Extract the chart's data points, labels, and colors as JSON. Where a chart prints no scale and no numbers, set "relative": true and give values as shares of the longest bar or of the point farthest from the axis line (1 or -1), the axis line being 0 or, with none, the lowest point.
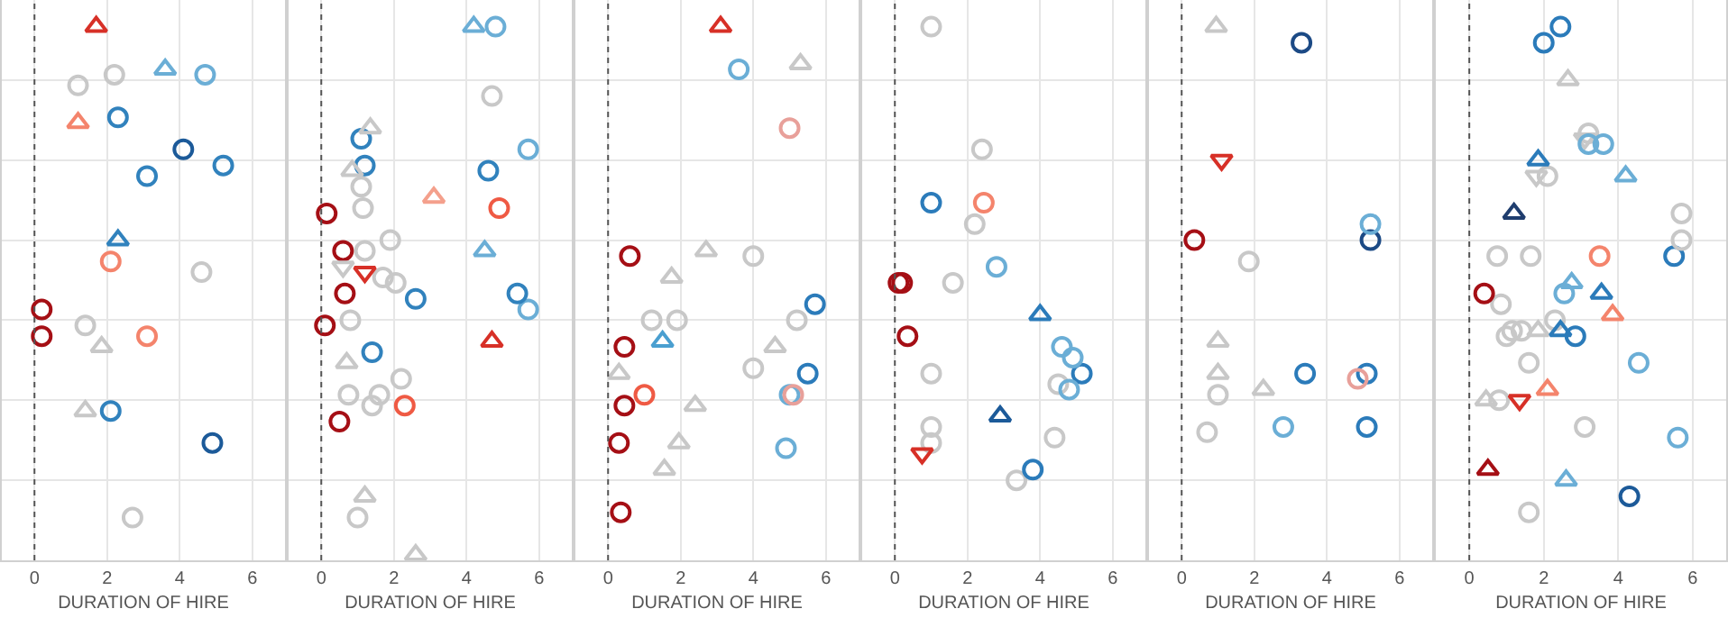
{
  "chart_data": [
    {
      "type": "scatter",
      "relative": true,
      "xlabel": "DURATION OF HIRE",
      "xlim": [
        -0.9,
        6.9
      ],
      "xticks": [
        0,
        2,
        4,
        6
      ],
      "grid": true,
      "ref_lines": [
        {
          "axis": "x",
          "value": 0,
          "line_style": "dotted",
          "color": "#555555"
        }
      ],
      "series": [
        {
          "color": "#d73027",
          "marker": "triangle",
          "x": [
            1.7
          ],
          "values": [
            1.0
          ]
        },
        {
          "color": "#c8c8c8",
          "marker": "circle",
          "x": [
            1.2,
            2.2,
            4.6,
            1.4,
            2.7
          ],
          "values": [
            0.89,
            0.91,
            0.54,
            0.44,
            0.08
          ]
        },
        {
          "color": "#6baed6",
          "marker": "triangle",
          "x": [
            3.6
          ],
          "values": [
            0.92
          ]
        },
        {
          "color": "#6baed6",
          "marker": "circle",
          "x": [
            4.7
          ],
          "values": [
            0.91
          ]
        },
        {
          "color": "#f4846c",
          "marker": "triangle",
          "x": [
            1.2
          ],
          "values": [
            0.82
          ]
        },
        {
          "color": "#3182bd",
          "marker": "circle",
          "x": [
            2.3,
            5.2,
            3.1,
            2.1
          ],
          "values": [
            0.83,
            0.74,
            0.72,
            0.28
          ]
        },
        {
          "color": "#1c5a99",
          "marker": "circle",
          "x": [
            4.1,
            4.9
          ],
          "values": [
            0.77,
            0.22
          ]
        },
        {
          "color": "#3182bd",
          "marker": "triangle",
          "x": [
            2.3
          ],
          "values": [
            0.6
          ]
        },
        {
          "color": "#f4846c",
          "marker": "circle",
          "x": [
            2.1,
            3.1
          ],
          "values": [
            0.56,
            0.42
          ]
        },
        {
          "color": "#a50f15",
          "marker": "circle",
          "x": [
            0.2,
            0.2
          ],
          "values": [
            0.47,
            0.42
          ]
        },
        {
          "color": "#c8c8c8",
          "marker": "triangle",
          "x": [
            1.85,
            1.4
          ],
          "values": [
            0.4,
            0.28
          ]
        }
      ]
    },
    {
      "type": "scatter",
      "relative": true,
      "xlabel": "DURATION OF HIRE",
      "xlim": [
        -0.9,
        6.9
      ],
      "xticks": [
        0,
        2,
        4,
        6
      ],
      "grid": true,
      "ref_lines": [
        {
          "axis": "x",
          "value": 0,
          "line_style": "dotted",
          "color": "#555555"
        }
      ],
      "series": [
        {
          "color": "#6baed6",
          "marker": "triangle",
          "x": [
            4.2,
            4.5
          ],
          "values": [
            1.0,
            0.58
          ]
        },
        {
          "color": "#6baed6",
          "marker": "circle",
          "x": [
            4.8,
            5.7,
            5.7
          ],
          "values": [
            1.0,
            0.77,
            0.47
          ]
        },
        {
          "color": "#c8c8c8",
          "marker": "circle",
          "x": [
            4.7,
            1.1,
            1.15,
            1.9,
            1.2,
            1.7,
            2.05,
            0.8,
            2.2,
            0.75,
            1.6,
            1.4,
            1.0
          ],
          "values": [
            0.87,
            0.7,
            0.66,
            0.6,
            0.58,
            0.53,
            0.52,
            0.45,
            0.34,
            0.31,
            0.31,
            0.29,
            0.08
          ]
        },
        {
          "color": "#3182bd",
          "marker": "circle",
          "x": [
            1.1,
            1.2,
            4.6,
            2.6,
            5.4,
            1.4
          ],
          "values": [
            0.79,
            0.74,
            0.73,
            0.49,
            0.5,
            0.39
          ]
        },
        {
          "color": "#c8c8c8",
          "marker": "triangle",
          "x": [
            1.35,
            0.85,
            0.7,
            1.2,
            2.6
          ],
          "values": [
            0.81,
            0.73,
            0.37,
            0.12,
            0.01
          ]
        },
        {
          "color": "#f4a08c",
          "marker": "triangle",
          "x": [
            3.1
          ],
          "values": [
            0.68
          ]
        },
        {
          "color": "#ef5a44",
          "marker": "circle",
          "x": [
            4.9,
            2.3
          ],
          "values": [
            0.66,
            0.29
          ]
        },
        {
          "color": "#a50f15",
          "marker": "circle",
          "x": [
            0.15,
            0.6,
            0.65,
            0.1,
            0.5
          ],
          "values": [
            0.65,
            0.58,
            0.5,
            0.44,
            0.26
          ]
        },
        {
          "color": "#c8c8c8",
          "marker": "triangle-down",
          "x": [
            0.6
          ],
          "values": [
            0.55
          ]
        },
        {
          "color": "#d73027",
          "marker": "triangle-down",
          "x": [
            1.2
          ],
          "values": [
            0.54
          ]
        },
        {
          "color": "#d73027",
          "marker": "triangle",
          "x": [
            4.7
          ],
          "values": [
            0.41
          ]
        }
      ]
    },
    {
      "type": "scatter",
      "relative": true,
      "xlabel": "DURATION OF HIRE",
      "xlim": [
        -0.9,
        6.9
      ],
      "xticks": [
        0,
        2,
        4,
        6
      ],
      "grid": true,
      "ref_lines": [
        {
          "axis": "x",
          "value": 0,
          "line_style": "dotted",
          "color": "#555555"
        }
      ],
      "series": [
        {
          "color": "#d73027",
          "marker": "triangle",
          "x": [
            3.1
          ],
          "values": [
            1.0
          ]
        },
        {
          "color": "#6baed6",
          "marker": "circle",
          "x": [
            3.6,
            5.0,
            4.9
          ],
          "values": [
            0.92,
            0.31,
            0.21
          ]
        },
        {
          "color": "#c8c8c8",
          "marker": "triangle",
          "x": [
            5.3,
            2.7,
            1.75,
            4.6,
            0.3,
            2.4,
            1.95,
            1.55
          ],
          "values": [
            0.93,
            0.58,
            0.53,
            0.4,
            0.35,
            0.29,
            0.22,
            0.17
          ]
        },
        {
          "color": "#e8a09a",
          "marker": "circle",
          "x": [
            5.0,
            5.1
          ],
          "values": [
            0.81,
            0.31
          ]
        },
        {
          "color": "#a50f15",
          "marker": "circle",
          "x": [
            0.6,
            0.45,
            0.45,
            0.3,
            0.35
          ],
          "values": [
            0.57,
            0.4,
            0.29,
            0.22,
            0.09
          ]
        },
        {
          "color": "#c8c8c8",
          "marker": "circle",
          "x": [
            4.0,
            1.2,
            1.9,
            5.2,
            4.0
          ],
          "values": [
            0.57,
            0.45,
            0.45,
            0.45,
            0.36
          ]
        },
        {
          "color": "#2b7bba",
          "marker": "circle",
          "x": [
            5.7,
            5.5
          ],
          "values": [
            0.48,
            0.35
          ]
        },
        {
          "color": "#4a9fd0",
          "marker": "triangle",
          "x": [
            1.5
          ],
          "values": [
            0.41
          ]
        },
        {
          "color": "#ef5a44",
          "marker": "circle",
          "x": [
            1.0
          ],
          "values": [
            0.31
          ]
        }
      ]
    },
    {
      "type": "scatter",
      "relative": true,
      "xlabel": "DURATION OF HIRE",
      "xlim": [
        -0.9,
        6.9
      ],
      "xticks": [
        0,
        2,
        4,
        6
      ],
      "grid": true,
      "ref_lines": [
        {
          "axis": "x",
          "value": 0,
          "line_style": "dotted",
          "color": "#555555"
        }
      ],
      "series": [
        {
          "color": "#c8c8c8",
          "marker": "circle",
          "x": [
            1.0,
            2.4,
            2.2,
            1.6,
            1.0,
            4.5,
            1.0,
            4.4,
            1.0,
            3.35
          ],
          "values": [
            1.0,
            0.77,
            0.63,
            0.52,
            0.35,
            0.33,
            0.25,
            0.23,
            0.22,
            0.15
          ]
        },
        {
          "color": "#2b7bba",
          "marker": "circle",
          "x": [
            1.0,
            5.15,
            3.8
          ],
          "values": [
            0.67,
            0.35,
            0.17
          ]
        },
        {
          "color": "#f4846c",
          "marker": "circle",
          "x": [
            2.45
          ],
          "values": [
            0.67
          ]
        },
        {
          "color": "#6baed6",
          "marker": "circle",
          "x": [
            2.8,
            4.6,
            4.9,
            4.8
          ],
          "values": [
            0.55,
            0.4,
            0.38,
            0.32
          ]
        },
        {
          "color": "#a50f15",
          "marker": "circle",
          "x": [
            0.1,
            0.2,
            0.35
          ],
          "values": [
            0.52,
            0.52,
            0.42
          ]
        },
        {
          "color": "#2b7bba",
          "marker": "triangle",
          "x": [
            4.0
          ],
          "values": [
            0.46
          ]
        },
        {
          "color": "#1c5a99",
          "marker": "triangle",
          "x": [
            2.9
          ],
          "values": [
            0.27
          ]
        },
        {
          "color": "#d73027",
          "marker": "triangle-down",
          "x": [
            0.75
          ],
          "values": [
            0.2
          ]
        }
      ]
    },
    {
      "type": "scatter",
      "relative": true,
      "xlabel": "DURATION OF HIRE",
      "xlim": [
        -0.9,
        6.9
      ],
      "xticks": [
        0,
        2,
        4,
        6
      ],
      "grid": true,
      "ref_lines": [
        {
          "axis": "x",
          "value": 0,
          "line_style": "dotted",
          "color": "#555555"
        }
      ],
      "series": [
        {
          "color": "#c8c8c8",
          "marker": "triangle",
          "x": [
            0.95,
            1.0,
            1.0,
            2.25
          ],
          "values": [
            1.0,
            0.41,
            0.35,
            0.32
          ]
        },
        {
          "color": "#1c4a85",
          "marker": "circle",
          "x": [
            3.3,
            5.2
          ],
          "values": [
            0.97,
            0.6
          ]
        },
        {
          "color": "#d73027",
          "marker": "triangle-down",
          "x": [
            1.1
          ],
          "values": [
            0.75
          ]
        },
        {
          "color": "#6baed6",
          "marker": "circle",
          "x": [
            5.2,
            2.8
          ],
          "values": [
            0.63,
            0.25
          ]
        },
        {
          "color": "#a50f15",
          "marker": "circle",
          "x": [
            0.35
          ],
          "values": [
            0.6
          ]
        },
        {
          "color": "#c8c8c8",
          "marker": "circle",
          "x": [
            1.85,
            1.0,
            0.7
          ],
          "values": [
            0.56,
            0.31,
            0.24
          ]
        },
        {
          "color": "#2b7bba",
          "marker": "circle",
          "x": [
            3.4,
            5.1,
            5.1
          ],
          "values": [
            0.35,
            0.35,
            0.25
          ]
        },
        {
          "color": "#e8a09a",
          "marker": "circle",
          "x": [
            4.85
          ],
          "values": [
            0.34
          ]
        }
      ]
    },
    {
      "type": "scatter",
      "relative": true,
      "xlabel": "DURATION OF HIRE",
      "xlim": [
        -0.9,
        6.9
      ],
      "xticks": [
        0,
        2,
        4,
        6
      ],
      "grid": true,
      "ref_lines": [
        {
          "axis": "x",
          "value": 0,
          "line_style": "dotted",
          "color": "#555555"
        }
      ],
      "series": [
        {
          "color": "#2b7bba",
          "marker": "circle",
          "x": [
            2.45,
            2.0,
            5.5,
            2.85
          ],
          "values": [
            1.0,
            0.97,
            0.57,
            0.42
          ]
        },
        {
          "color": "#c8c8c8",
          "marker": "triangle",
          "x": [
            2.65,
            1.85,
            0.45
          ],
          "values": [
            0.9,
            0.43,
            0.3
          ]
        },
        {
          "color": "#c8c8c8",
          "marker": "circle",
          "x": [
            3.2,
            2.1,
            5.7,
            5.7,
            0.75,
            1.65,
            0.85,
            2.3,
            1.15,
            1.4,
            1.0,
            1.6,
            0.8,
            3.1,
            1.6
          ],
          "values": [
            0.8,
            0.72,
            0.65,
            0.6,
            0.57,
            0.57,
            0.48,
            0.45,
            0.43,
            0.43,
            0.42,
            0.37,
            0.3,
            0.25,
            0.09
          ]
        },
        {
          "color": "#c8c8c8",
          "marker": "triangle-down",
          "x": [
            3.1,
            1.8
          ],
          "values": [
            0.79,
            0.72
          ]
        },
        {
          "color": "#6baed6",
          "marker": "circle",
          "x": [
            3.2,
            3.6,
            2.55,
            4.55,
            5.6
          ],
          "values": [
            0.78,
            0.78,
            0.5,
            0.37,
            0.23
          ]
        },
        {
          "color": "#2b7bba",
          "marker": "triangle",
          "x": [
            1.85,
            3.55,
            2.45
          ],
          "values": [
            0.75,
            0.5,
            0.43
          ]
        },
        {
          "color": "#6baed6",
          "marker": "triangle",
          "x": [
            4.2,
            2.75,
            2.6
          ],
          "values": [
            0.72,
            0.52,
            0.15
          ]
        },
        {
          "color": "#1f3d6e",
          "marker": "triangle",
          "x": [
            1.2
          ],
          "values": [
            0.65
          ]
        },
        {
          "color": "#f4846c",
          "marker": "circle",
          "x": [
            3.5
          ],
          "values": [
            0.57
          ]
        },
        {
          "color": "#a50f15",
          "marker": "circle",
          "x": [
            0.4
          ],
          "values": [
            0.5
          ]
        },
        {
          "color": "#f4846c",
          "marker": "triangle",
          "x": [
            3.85,
            2.1
          ],
          "values": [
            0.46,
            0.32
          ]
        },
        {
          "color": "#d73027",
          "marker": "triangle-down",
          "x": [
            1.35
          ],
          "values": [
            0.3
          ]
        },
        {
          "color": "#a50f15",
          "marker": "triangle",
          "x": [
            0.5
          ],
          "values": [
            0.17
          ]
        },
        {
          "color": "#1c5a99",
          "marker": "circle",
          "x": [
            4.3
          ],
          "values": [
            0.12
          ]
        }
      ]
    }
  ]
}
